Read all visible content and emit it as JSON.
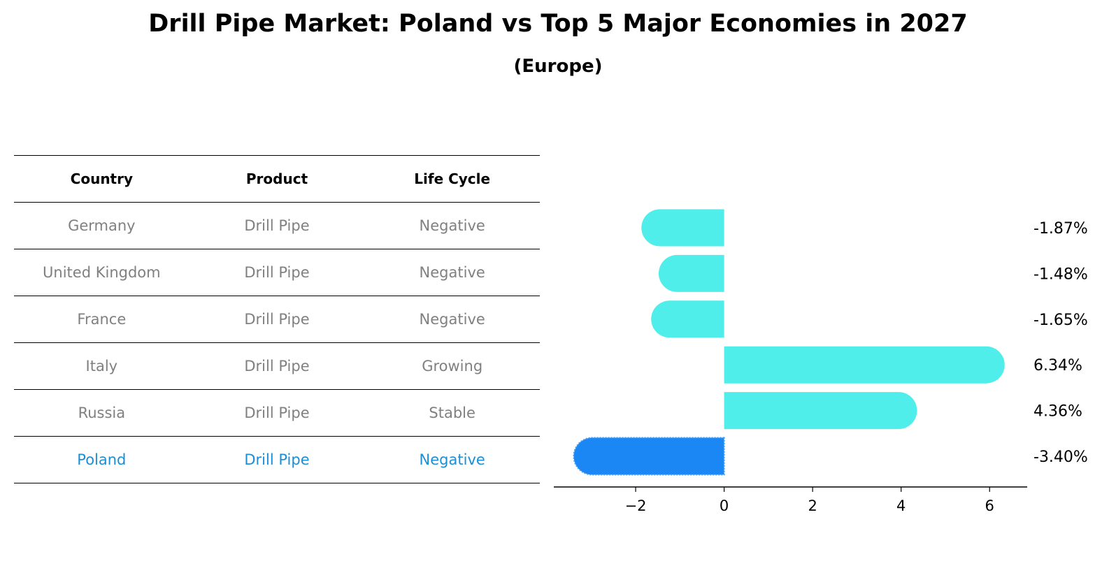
{
  "title": "Drill Pipe Market: Poland vs Top 5 Major Economies in 2027",
  "subtitle": "(Europe)",
  "table": {
    "headers": [
      "Country",
      "Product",
      "Life Cycle"
    ],
    "rows": [
      [
        "Germany",
        "Drill Pipe",
        "Negative"
      ],
      [
        "United Kingdom",
        "Drill Pipe",
        "Negative"
      ],
      [
        "France",
        "Drill Pipe",
        "Negative"
      ],
      [
        "Italy",
        "Drill Pipe",
        "Growing"
      ],
      [
        "Russia",
        "Drill Pipe",
        "Stable"
      ],
      [
        "Poland",
        "Drill Pipe",
        "Negative"
      ]
    ]
  },
  "colors": {
    "bar": "#4feeea",
    "highlight_bar": "#1a87f5",
    "highlight_text": "#1a8fd6",
    "muted_text": "#808080"
  },
  "chart_data": {
    "type": "bar",
    "orientation": "horizontal",
    "categories": [
      "Germany",
      "United Kingdom",
      "France",
      "Italy",
      "Russia",
      "Poland"
    ],
    "values": [
      -1.87,
      -1.48,
      -1.65,
      6.34,
      4.36,
      -3.4
    ],
    "value_labels": [
      "-1.87%",
      "-1.48%",
      "-1.65%",
      "6.34%",
      "4.36%",
      "-3.40%"
    ],
    "highlight_category": "Poland",
    "xlim": [
      -3.85,
      6.85
    ],
    "xticks": [
      -2,
      0,
      2,
      4,
      6
    ],
    "xtick_labels": [
      "−2",
      "0",
      "2",
      "4",
      "6"
    ],
    "title": "",
    "xlabel": "",
    "ylabel": ""
  }
}
